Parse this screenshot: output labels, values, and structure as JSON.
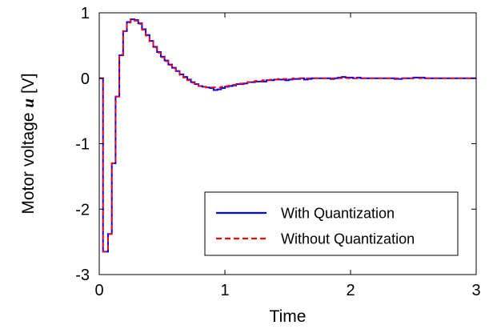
{
  "chart_data": {
    "type": "line",
    "xlabel": "Time",
    "ylabel_text": "Motor voltage",
    "ylabel_symbol": "u",
    "ylabel_unit": "[V]",
    "xlim": [
      0,
      3
    ],
    "ylim": [
      -3,
      1
    ],
    "xticks": [
      0,
      1,
      2,
      3
    ],
    "yticks": [
      1,
      0,
      -1,
      -2,
      -3
    ],
    "xtick_labels": [
      "0",
      "1",
      "2",
      "3"
    ],
    "ytick_labels": [
      "1",
      "0",
      "-1",
      "-2",
      "-3"
    ],
    "grid": false,
    "legend_position": "bottom-right",
    "series": [
      {
        "name": "With Quantization",
        "color": "#0000ff",
        "style": "solid",
        "step": true,
        "points": [
          [
            0,
            0
          ],
          [
            0.03,
            -2.65
          ],
          [
            0.07,
            -2.38
          ],
          [
            0.1,
            -1.3
          ],
          [
            0.13,
            -0.28
          ],
          [
            0.16,
            0.35
          ],
          [
            0.19,
            0.72
          ],
          [
            0.22,
            0.86
          ],
          [
            0.25,
            0.9
          ],
          [
            0.28,
            0.89
          ],
          [
            0.31,
            0.84
          ],
          [
            0.34,
            0.75
          ],
          [
            0.37,
            0.66
          ],
          [
            0.4,
            0.57
          ],
          [
            0.43,
            0.48
          ],
          [
            0.46,
            0.4
          ],
          [
            0.49,
            0.33
          ],
          [
            0.52,
            0.27
          ],
          [
            0.55,
            0.21
          ],
          [
            0.58,
            0.16
          ],
          [
            0.61,
            0.11
          ],
          [
            0.64,
            0.06
          ],
          [
            0.67,
            0.02
          ],
          [
            0.7,
            -0.02
          ],
          [
            0.73,
            -0.06
          ],
          [
            0.76,
            -0.09
          ],
          [
            0.79,
            -0.12
          ],
          [
            0.82,
            -0.13
          ],
          [
            0.85,
            -0.14
          ],
          [
            0.88,
            -0.15
          ],
          [
            0.91,
            -0.18
          ],
          [
            0.94,
            -0.17
          ],
          [
            0.97,
            -0.15
          ],
          [
            1.0,
            -0.13
          ],
          [
            1.03,
            -0.12
          ],
          [
            1.06,
            -0.11
          ],
          [
            1.09,
            -0.09
          ],
          [
            1.12,
            -0.09
          ],
          [
            1.15,
            -0.08
          ],
          [
            1.18,
            -0.06
          ],
          [
            1.21,
            -0.06
          ],
          [
            1.24,
            -0.05
          ],
          [
            1.27,
            -0.05
          ],
          [
            1.3,
            -0.05
          ],
          [
            1.33,
            -0.03
          ],
          [
            1.36,
            -0.03
          ],
          [
            1.39,
            -0.02
          ],
          [
            1.42,
            -0.02
          ],
          [
            1.45,
            -0.02
          ],
          [
            1.48,
            -0.03
          ],
          [
            1.51,
            -0.02
          ],
          [
            1.54,
            -0.01
          ],
          [
            1.57,
            -0.01
          ],
          [
            1.6,
            0.0
          ],
          [
            1.63,
            -0.02
          ],
          [
            1.66,
            -0.01
          ],
          [
            1.69,
            0.0
          ],
          [
            1.72,
            0.0
          ],
          [
            1.75,
            0.0
          ],
          [
            1.78,
            0.0
          ],
          [
            1.81,
            0.0
          ],
          [
            1.84,
            -0.01
          ],
          [
            1.87,
            0.0
          ],
          [
            1.9,
            0.01
          ],
          [
            1.93,
            0.02
          ],
          [
            1.96,
            0.01
          ],
          [
            1.99,
            0.01
          ],
          [
            2.02,
            0.0
          ],
          [
            2.05,
            0.01
          ],
          [
            2.08,
            0.0
          ],
          [
            2.11,
            0.0
          ],
          [
            2.14,
            0.0
          ],
          [
            2.17,
            0.0
          ],
          [
            2.2,
            0.0
          ],
          [
            2.23,
            0.0
          ],
          [
            2.26,
            0.0
          ],
          [
            2.29,
            0.0
          ],
          [
            2.32,
            0.0
          ],
          [
            2.35,
            -0.01
          ],
          [
            2.38,
            -0.01
          ],
          [
            2.41,
            0.0
          ],
          [
            2.44,
            0.0
          ],
          [
            2.47,
            0.0
          ],
          [
            2.5,
            0.01
          ],
          [
            2.53,
            0.01
          ],
          [
            2.56,
            0.01
          ],
          [
            2.59,
            0.0
          ],
          [
            2.62,
            0.0
          ],
          [
            2.65,
            0.0
          ],
          [
            2.7,
            0.0
          ],
          [
            2.8,
            0.0
          ],
          [
            2.9,
            0.0
          ],
          [
            3.0,
            0.0
          ]
        ]
      },
      {
        "name": "Without Quantization",
        "color": "#ff0000",
        "style": "dashed",
        "step": true,
        "points": [
          [
            0,
            0
          ],
          [
            0.03,
            -2.65
          ],
          [
            0.07,
            -2.38
          ],
          [
            0.1,
            -1.3
          ],
          [
            0.13,
            -0.28
          ],
          [
            0.16,
            0.36
          ],
          [
            0.19,
            0.72
          ],
          [
            0.22,
            0.85
          ],
          [
            0.25,
            0.89
          ],
          [
            0.28,
            0.88
          ],
          [
            0.31,
            0.83
          ],
          [
            0.34,
            0.74
          ],
          [
            0.37,
            0.65
          ],
          [
            0.4,
            0.56
          ],
          [
            0.43,
            0.47
          ],
          [
            0.46,
            0.39
          ],
          [
            0.49,
            0.32
          ],
          [
            0.52,
            0.26
          ],
          [
            0.55,
            0.2
          ],
          [
            0.58,
            0.15
          ],
          [
            0.61,
            0.1
          ],
          [
            0.64,
            0.05
          ],
          [
            0.67,
            0.01
          ],
          [
            0.7,
            -0.03
          ],
          [
            0.73,
            -0.07
          ],
          [
            0.76,
            -0.1
          ],
          [
            0.79,
            -0.12
          ],
          [
            0.82,
            -0.13
          ],
          [
            0.85,
            -0.14
          ],
          [
            0.88,
            -0.14
          ],
          [
            0.91,
            -0.14
          ],
          [
            0.94,
            -0.14
          ],
          [
            0.97,
            -0.13
          ],
          [
            1.0,
            -0.12
          ],
          [
            1.03,
            -0.11
          ],
          [
            1.06,
            -0.1
          ],
          [
            1.09,
            -0.09
          ],
          [
            1.12,
            -0.08
          ],
          [
            1.15,
            -0.07
          ],
          [
            1.18,
            -0.06
          ],
          [
            1.21,
            -0.05
          ],
          [
            1.24,
            -0.04
          ],
          [
            1.27,
            -0.04
          ],
          [
            1.3,
            -0.03
          ],
          [
            1.33,
            -0.03
          ],
          [
            1.36,
            -0.02
          ],
          [
            1.39,
            -0.02
          ],
          [
            1.42,
            -0.01
          ],
          [
            1.45,
            -0.01
          ],
          [
            1.48,
            -0.01
          ],
          [
            1.51,
            -0.01
          ],
          [
            1.54,
            0.0
          ],
          [
            1.6,
            0.0
          ],
          [
            1.7,
            0.0
          ],
          [
            1.8,
            0.0
          ],
          [
            1.9,
            0.0
          ],
          [
            2.0,
            0.0
          ],
          [
            2.2,
            0.0
          ],
          [
            2.4,
            0.0
          ],
          [
            2.6,
            0.0
          ],
          [
            2.8,
            0.0
          ],
          [
            3.0,
            0.0
          ]
        ]
      }
    ]
  }
}
